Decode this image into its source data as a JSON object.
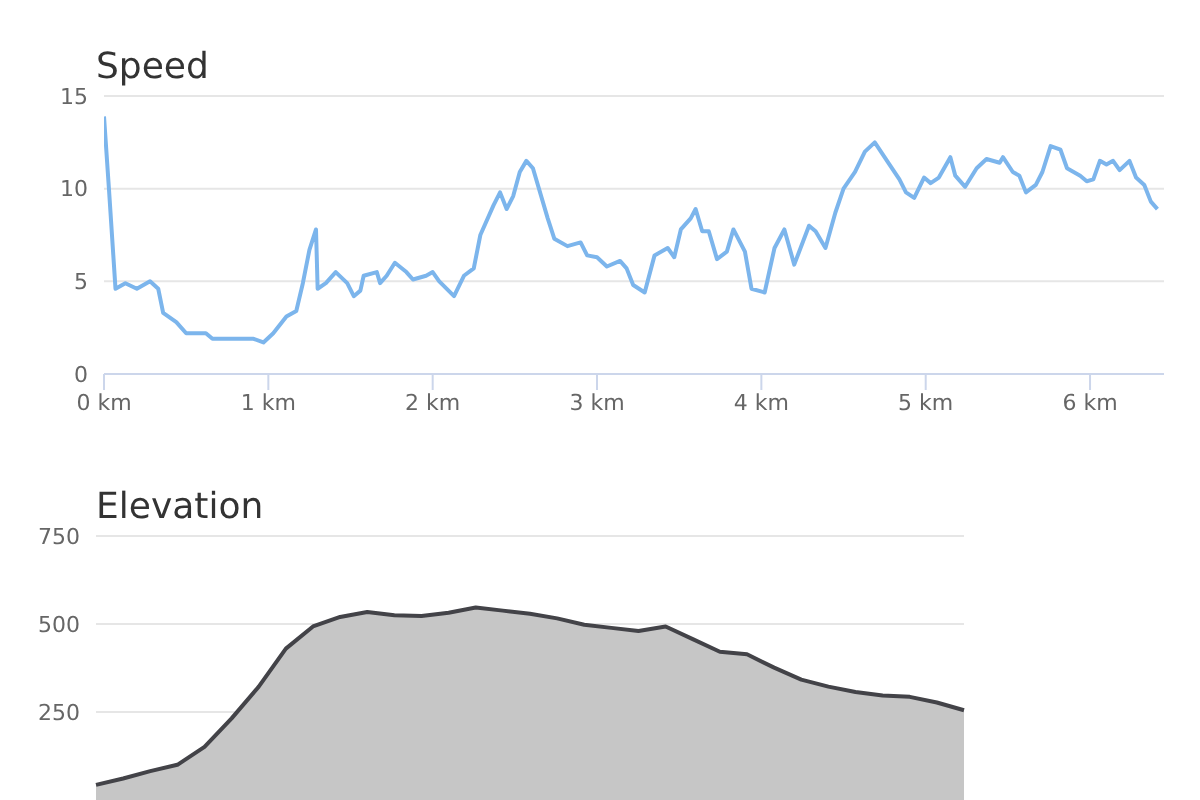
{
  "chart_data": [
    {
      "type": "line",
      "title": "Speed",
      "grid": "y",
      "xlim": [
        0,
        6.45
      ],
      "xticks": [
        {
          "value": 0,
          "label": "0 km"
        },
        {
          "value": 1,
          "label": "1 km"
        },
        {
          "value": 2,
          "label": "2 km"
        },
        {
          "value": 3,
          "label": "3 km"
        },
        {
          "value": 4,
          "label": "4 km"
        },
        {
          "value": 5,
          "label": "5 km"
        },
        {
          "value": 6,
          "label": "6 km"
        }
      ],
      "ylim": [
        0,
        15
      ],
      "yticks": [
        0,
        5,
        10,
        15
      ],
      "x": [
        0,
        0.03,
        0.07,
        0.13,
        0.2,
        0.28,
        0.33,
        0.36,
        0.44,
        0.5,
        0.62,
        0.66,
        0.78,
        0.91,
        0.97,
        1.03,
        1.11,
        1.17,
        1.21,
        1.25,
        1.29,
        1.3,
        1.35,
        1.41,
        1.48,
        1.52,
        1.56,
        1.58,
        1.66,
        1.68,
        1.72,
        1.77,
        1.84,
        1.88,
        1.96,
        2.0,
        2.04,
        2.13,
        2.19,
        2.25,
        2.29,
        2.37,
        2.41,
        2.45,
        2.49,
        2.53,
        2.57,
        2.61,
        2.7,
        2.74,
        2.82,
        2.9,
        2.94,
        3.0,
        3.06,
        3.14,
        3.18,
        3.22,
        3.29,
        3.35,
        3.43,
        3.47,
        3.51,
        3.57,
        3.6,
        3.64,
        3.68,
        3.73,
        3.79,
        3.83,
        3.9,
        3.94,
        4.02,
        4.08,
        4.14,
        4.2,
        4.29,
        4.33,
        4.39,
        4.45,
        4.5,
        4.57,
        4.63,
        4.69,
        4.78,
        4.84,
        4.88,
        4.93,
        4.99,
        5.03,
        5.08,
        5.15,
        5.18,
        5.24,
        5.31,
        5.37,
        5.45,
        5.47,
        5.53,
        5.57,
        5.61,
        5.67,
        5.71,
        5.76,
        5.82,
        5.86,
        5.94,
        5.98,
        6.02,
        6.06,
        6.1,
        6.14,
        6.18,
        6.24,
        6.28,
        6.33,
        6.37,
        6.41
      ],
      "series": [
        {
          "color": "#7cb5ec",
          "values": [
            13.9,
            10.0,
            4.6,
            4.9,
            4.6,
            5.0,
            4.6,
            3.3,
            2.8,
            2.2,
            2.2,
            1.9,
            1.9,
            1.9,
            1.7,
            2.2,
            3.1,
            3.4,
            4.9,
            6.7,
            7.8,
            4.6,
            4.9,
            5.5,
            4.9,
            4.2,
            4.5,
            5.3,
            5.5,
            4.9,
            5.3,
            6.0,
            5.5,
            5.1,
            5.3,
            5.5,
            5.0,
            4.2,
            5.3,
            5.7,
            7.5,
            9.1,
            9.8,
            8.9,
            9.6,
            10.9,
            11.5,
            11.1,
            8.4,
            7.3,
            6.9,
            7.1,
            6.4,
            6.3,
            5.8,
            6.1,
            5.7,
            4.8,
            4.4,
            6.4,
            6.8,
            6.3,
            7.8,
            8.4,
            8.9,
            7.7,
            7.7,
            6.2,
            6.6,
            7.8,
            6.6,
            4.6,
            4.4,
            6.8,
            7.8,
            5.9,
            8.0,
            7.7,
            6.8,
            8.7,
            10.0,
            10.9,
            12.0,
            12.5,
            11.3,
            10.5,
            9.8,
            9.5,
            10.6,
            10.3,
            10.6,
            11.7,
            10.7,
            10.1,
            11.1,
            11.6,
            11.4,
            11.7,
            10.9,
            10.7,
            9.8,
            10.2,
            10.9,
            12.3,
            12.1,
            11.1,
            10.7,
            10.4,
            10.5,
            11.5,
            11.3,
            11.5,
            11.0,
            11.5,
            10.6,
            10.2,
            9.3,
            8.9
          ]
        }
      ]
    },
    {
      "type": "area",
      "title": "Elevation",
      "grid": "y",
      "tick_labels": "y",
      "ylim": [
        0,
        750
      ],
      "yticks": [
        250,
        500,
        750
      ],
      "categories": [
        null,
        null,
        null,
        null,
        null,
        null,
        null,
        null,
        null,
        null,
        null,
        null,
        null,
        null,
        null,
        null,
        null,
        null,
        null,
        null,
        null,
        null,
        null,
        null,
        null,
        null,
        null,
        null,
        null,
        null,
        null,
        null,
        null
      ],
      "series": [
        {
          "color": "#434348",
          "values": [
            43,
            61,
            82,
            100,
            151,
            232,
            322,
            430,
            493,
            520,
            534,
            525,
            523,
            532,
            547,
            538,
            529,
            516,
            498,
            489,
            480,
            493,
            457,
            421,
            414,
            376,
            342,
            322,
            307,
            297,
            293,
            277,
            255
          ]
        }
      ]
    }
  ]
}
